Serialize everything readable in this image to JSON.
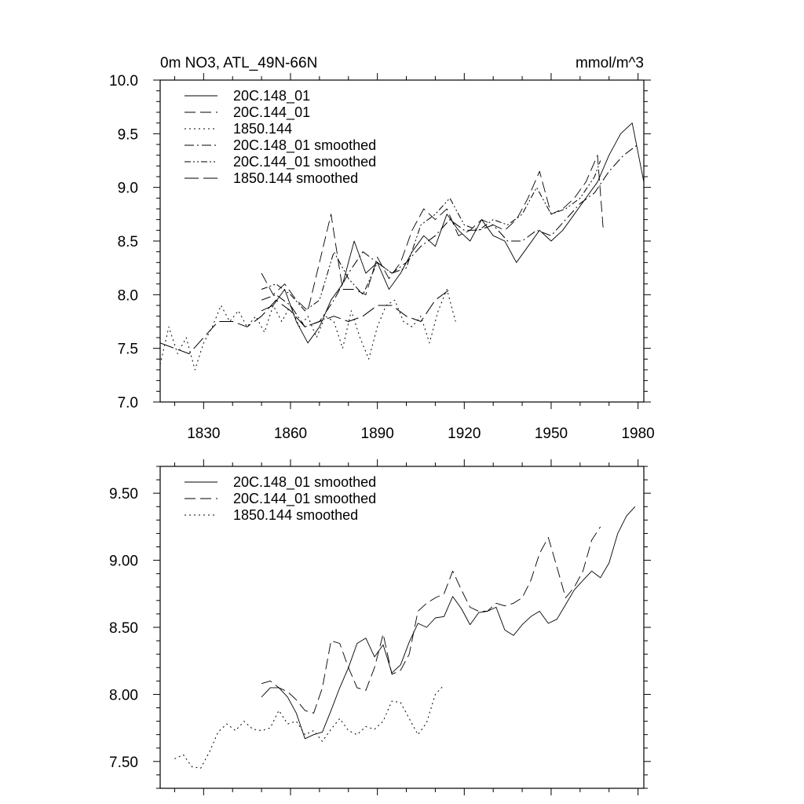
{
  "chart_data": [
    {
      "type": "line",
      "title": "0m NO3, ATL_49N-66N",
      "units_label": "mmol/m^3",
      "xlabel": "",
      "ylabel": "",
      "xlim": [
        1815,
        1982
      ],
      "ylim": [
        7.0,
        10.0
      ],
      "x_ticks": [
        1830,
        1860,
        1890,
        1920,
        1950,
        1980
      ],
      "x_tick_labels": [
        "1830",
        "1860",
        "1890",
        "1920",
        "1950",
        "1980"
      ],
      "x_minor_step": 10,
      "y_ticks": [
        7.0,
        7.5,
        8.0,
        8.5,
        9.0,
        9.5,
        10.0
      ],
      "y_tick_labels": [
        "7.0",
        "7.5",
        "8.0",
        "8.5",
        "9.0",
        "9.5",
        "10.0"
      ],
      "y_minor_step": 0.1,
      "legend_position": "top-left",
      "series": [
        {
          "name": "20C.148_01",
          "style": "solid",
          "x": [
            1850,
            1854,
            1858,
            1862,
            1866,
            1870,
            1874,
            1878,
            1882,
            1886,
            1890,
            1894,
            1898,
            1902,
            1906,
            1910,
            1914,
            1918,
            1922,
            1926,
            1930,
            1934,
            1938,
            1942,
            1946,
            1950,
            1954,
            1958,
            1962,
            1966,
            1970,
            1974,
            1978,
            1982
          ],
          "values": [
            7.85,
            7.9,
            8.05,
            7.75,
            7.55,
            7.7,
            7.95,
            8.1,
            8.5,
            8.2,
            8.3,
            8.05,
            8.2,
            8.4,
            8.55,
            8.45,
            8.75,
            8.6,
            8.5,
            8.7,
            8.55,
            8.5,
            8.3,
            8.45,
            8.6,
            8.5,
            8.6,
            8.75,
            8.9,
            9.05,
            9.3,
            9.5,
            9.6,
            9.05
          ]
        },
        {
          "name": "20C.144_01",
          "style": "dashed",
          "x": [
            1850,
            1854,
            1858,
            1862,
            1866,
            1870,
            1874,
            1878,
            1882,
            1886,
            1890,
            1894,
            1898,
            1902,
            1906,
            1910,
            1914,
            1918,
            1922,
            1926,
            1930,
            1934,
            1938,
            1942,
            1946,
            1950,
            1954,
            1958,
            1962,
            1966,
            1968
          ],
          "values": [
            8.2,
            8.0,
            8.1,
            7.95,
            7.85,
            8.3,
            8.75,
            8.05,
            8.05,
            8.0,
            8.35,
            8.15,
            8.3,
            8.6,
            8.8,
            8.7,
            8.8,
            8.55,
            8.6,
            8.7,
            8.65,
            8.6,
            8.7,
            8.9,
            9.15,
            8.75,
            8.8,
            8.9,
            9.05,
            9.3,
            8.6
          ]
        },
        {
          "name": "1850.144",
          "style": "dotted",
          "x": [
            1815,
            1818,
            1821,
            1824,
            1827,
            1830,
            1833,
            1836,
            1839,
            1842,
            1845,
            1848,
            1851,
            1854,
            1857,
            1860,
            1863,
            1866,
            1869,
            1872,
            1875,
            1878,
            1881,
            1884,
            1887,
            1890,
            1893,
            1896,
            1899,
            1902,
            1905,
            1908,
            1911,
            1914,
            1917
          ],
          "values": [
            7.35,
            7.7,
            7.45,
            7.6,
            7.3,
            7.55,
            7.7,
            7.9,
            7.75,
            7.85,
            7.7,
            7.8,
            7.65,
            7.9,
            7.75,
            7.9,
            7.7,
            7.8,
            7.6,
            7.8,
            7.75,
            7.5,
            7.85,
            7.6,
            7.4,
            7.7,
            7.9,
            7.95,
            7.75,
            7.7,
            7.8,
            7.55,
            7.85,
            8.05,
            7.75
          ]
        },
        {
          "name": "20C.148_01 smoothed",
          "style": "dashdot",
          "x": [
            1850,
            1855,
            1860,
            1865,
            1870,
            1875,
            1880,
            1885,
            1890,
            1895,
            1900,
            1905,
            1910,
            1915,
            1920,
            1925,
            1930,
            1935,
            1940,
            1945,
            1950,
            1955,
            1960,
            1965,
            1970,
            1975,
            1980
          ],
          "values": [
            7.95,
            8.0,
            7.9,
            7.7,
            7.75,
            7.95,
            8.2,
            8.4,
            8.3,
            8.2,
            8.3,
            8.45,
            8.55,
            8.7,
            8.6,
            8.6,
            8.65,
            8.5,
            8.5,
            8.6,
            8.55,
            8.7,
            8.85,
            8.95,
            9.15,
            9.3,
            9.4
          ]
        },
        {
          "name": "20C.144_01 smoothed",
          "style": "dashdotdot",
          "x": [
            1850,
            1855,
            1860,
            1865,
            1870,
            1875,
            1880,
            1885,
            1890,
            1895,
            1900,
            1905,
            1910,
            1915,
            1920,
            1925,
            1930,
            1935,
            1940,
            1945,
            1950,
            1955,
            1960,
            1965,
            1967
          ],
          "values": [
            8.05,
            8.1,
            8.0,
            7.85,
            7.95,
            8.4,
            8.15,
            8.0,
            8.3,
            8.2,
            8.25,
            8.65,
            8.75,
            8.9,
            8.65,
            8.6,
            8.7,
            8.65,
            8.75,
            9.0,
            8.75,
            8.8,
            8.9,
            9.1,
            9.25
          ]
        },
        {
          "name": "1850.144 smoothed",
          "style": "longdash",
          "x": [
            1815,
            1820,
            1825,
            1830,
            1835,
            1840,
            1845,
            1850,
            1855,
            1860,
            1865,
            1870,
            1875,
            1880,
            1885,
            1890,
            1895,
            1900,
            1905,
            1910,
            1915
          ],
          "values": [
            7.55,
            7.5,
            7.45,
            7.6,
            7.75,
            7.75,
            7.7,
            7.8,
            7.95,
            7.85,
            7.7,
            7.75,
            7.8,
            7.75,
            7.8,
            7.9,
            7.9,
            7.8,
            7.75,
            7.95,
            8.05
          ]
        }
      ]
    },
    {
      "type": "line",
      "title": "",
      "xlabel": "",
      "ylabel": "",
      "xlim": [
        1815,
        1982
      ],
      "ylim": [
        7.3,
        9.7
      ],
      "x_ticks": [
        1830,
        1860,
        1890,
        1920,
        1950,
        1980
      ],
      "x_tick_labels": [],
      "x_minor_step": 10,
      "y_ticks": [
        7.5,
        8.0,
        8.5,
        9.0,
        9.5
      ],
      "y_tick_labels": [
        "7.50",
        "8.00",
        "8.50",
        "9.00",
        "9.50"
      ],
      "y_minor_step": 0.1,
      "legend_position": "top-left",
      "series": [
        {
          "name": "20C.148_01 smoothed",
          "style": "solid",
          "x": [
            1850,
            1853,
            1856,
            1859,
            1862,
            1865,
            1868,
            1871,
            1874,
            1877,
            1880,
            1883,
            1886,
            1889,
            1892,
            1895,
            1898,
            1901,
            1904,
            1907,
            1910,
            1913,
            1916,
            1919,
            1922,
            1925,
            1928,
            1931,
            1934,
            1937,
            1940,
            1943,
            1946,
            1949,
            1952,
            1955,
            1958,
            1961,
            1964,
            1967,
            1970,
            1973,
            1976,
            1979
          ],
          "values": [
            7.98,
            8.05,
            8.05,
            7.98,
            7.86,
            7.67,
            7.7,
            7.72,
            7.88,
            8.05,
            8.2,
            8.38,
            8.42,
            8.28,
            8.37,
            8.16,
            8.22,
            8.39,
            8.53,
            8.5,
            8.57,
            8.58,
            8.73,
            8.64,
            8.52,
            8.61,
            8.62,
            8.65,
            8.48,
            8.44,
            8.52,
            8.58,
            8.62,
            8.53,
            8.56,
            8.67,
            8.78,
            8.85,
            8.92,
            8.87,
            8.98,
            9.2,
            9.33,
            9.4
          ]
        },
        {
          "name": "20C.144_01 smoothed",
          "style": "dashed",
          "x": [
            1850,
            1853,
            1856,
            1859,
            1862,
            1865,
            1868,
            1871,
            1874,
            1877,
            1880,
            1883,
            1886,
            1889,
            1892,
            1895,
            1898,
            1901,
            1904,
            1907,
            1910,
            1913,
            1916,
            1919,
            1922,
            1925,
            1928,
            1931,
            1934,
            1937,
            1940,
            1943,
            1946,
            1949,
            1952,
            1955,
            1958,
            1961,
            1964,
            1967
          ],
          "values": [
            8.08,
            8.1,
            8.05,
            8.02,
            7.96,
            7.88,
            7.86,
            8.05,
            8.4,
            8.38,
            8.2,
            8.05,
            8.03,
            8.2,
            8.45,
            8.15,
            8.18,
            8.3,
            8.62,
            8.68,
            8.72,
            8.75,
            8.92,
            8.78,
            8.65,
            8.62,
            8.62,
            8.68,
            8.66,
            8.68,
            8.72,
            8.85,
            9.05,
            9.17,
            8.95,
            8.72,
            8.8,
            8.92,
            9.15,
            9.25
          ]
        },
        {
          "name": "1850.144 smoothed",
          "style": "dotted",
          "x": [
            1820,
            1823,
            1826,
            1829,
            1832,
            1835,
            1838,
            1841,
            1844,
            1847,
            1850,
            1853,
            1856,
            1859,
            1862,
            1865,
            1868,
            1871,
            1874,
            1877,
            1880,
            1883,
            1886,
            1889,
            1892,
            1895,
            1898,
            1901,
            1904,
            1907,
            1910,
            1913
          ],
          "values": [
            7.52,
            7.55,
            7.46,
            7.45,
            7.57,
            7.72,
            7.78,
            7.73,
            7.8,
            7.74,
            7.73,
            7.75,
            7.88,
            7.78,
            7.8,
            7.7,
            7.73,
            7.65,
            7.74,
            7.82,
            7.73,
            7.7,
            7.76,
            7.74,
            7.8,
            7.95,
            7.94,
            7.82,
            7.7,
            7.79,
            8.0,
            8.07
          ]
        }
      ]
    }
  ]
}
